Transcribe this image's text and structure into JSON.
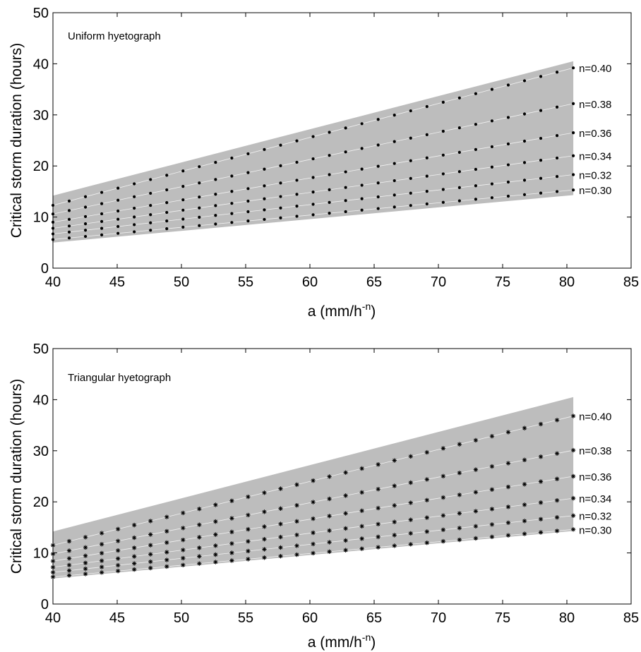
{
  "chart_data": [
    {
      "type": "scatter",
      "title": "",
      "annotation": "Uniform hyetograph",
      "xlabel": "a (mm/h",
      "xlabel_sup": "-n",
      "xlabel_suffix": ")",
      "ylabel": "Critical storm duration (hours)",
      "xlim": [
        40,
        85
      ],
      "ylim": [
        0,
        50
      ],
      "xticks": [
        40,
        45,
        50,
        55,
        60,
        65,
        70,
        75,
        80,
        85
      ],
      "yticks": [
        0,
        10,
        20,
        30,
        40,
        50
      ],
      "grid": false,
      "marker": "dot",
      "band": {
        "x": [
          40,
          80.5
        ],
        "lower": [
          5.0,
          14.3
        ],
        "upper": [
          14.2,
          40.5
        ],
        "color": "#bdbdbd"
      },
      "series": [
        {
          "name": "n=0.40",
          "x": [
            40,
            80.5
          ],
          "y": [
            12.3,
            39.2
          ]
        },
        {
          "name": "n=0.38",
          "x": [
            40,
            80.5
          ],
          "y": [
            10.6,
            32.2
          ]
        },
        {
          "name": "n=0.36",
          "x": [
            40,
            80.5
          ],
          "y": [
            9.0,
            26.5
          ]
        },
        {
          "name": "n=0.34",
          "x": [
            40,
            80.5
          ],
          "y": [
            7.8,
            22.0
          ]
        },
        {
          "name": "n=0.32",
          "x": [
            40,
            80.5
          ],
          "y": [
            6.7,
            18.3
          ]
        },
        {
          "name": "n=0.30",
          "x": [
            40,
            80.5
          ],
          "y": [
            5.6,
            15.3
          ]
        }
      ]
    },
    {
      "type": "scatter",
      "title": "",
      "annotation": "Triangular hyetograph",
      "xlabel": "a (mm/h",
      "xlabel_sup": "-n",
      "xlabel_suffix": ")",
      "ylabel": "Critical storm duration (hours)",
      "xlim": [
        40,
        85
      ],
      "ylim": [
        0,
        50
      ],
      "xticks": [
        40,
        45,
        50,
        55,
        60,
        65,
        70,
        75,
        80,
        85
      ],
      "yticks": [
        0,
        10,
        20,
        30,
        40,
        50
      ],
      "grid": false,
      "marker": "asterisk",
      "band": {
        "x": [
          40,
          80.5
        ],
        "lower": [
          5.0,
          14.3
        ],
        "upper": [
          14.2,
          40.5
        ],
        "color": "#bdbdbd"
      },
      "series": [
        {
          "name": "n=0.40",
          "x": [
            40,
            80.5
          ],
          "y": [
            11.5,
            36.8
          ]
        },
        {
          "name": "n=0.38",
          "x": [
            40,
            80.5
          ],
          "y": [
            9.8,
            30.1
          ]
        },
        {
          "name": "n=0.36",
          "x": [
            40,
            80.5
          ],
          "y": [
            8.4,
            25.0
          ]
        },
        {
          "name": "n=0.34",
          "x": [
            40,
            80.5
          ],
          "y": [
            7.2,
            20.7
          ]
        },
        {
          "name": "n=0.32",
          "x": [
            40,
            80.5
          ],
          "y": [
            6.2,
            17.3
          ]
        },
        {
          "name": "n=0.30",
          "x": [
            40,
            80.5
          ],
          "y": [
            5.3,
            14.6
          ]
        }
      ]
    }
  ]
}
